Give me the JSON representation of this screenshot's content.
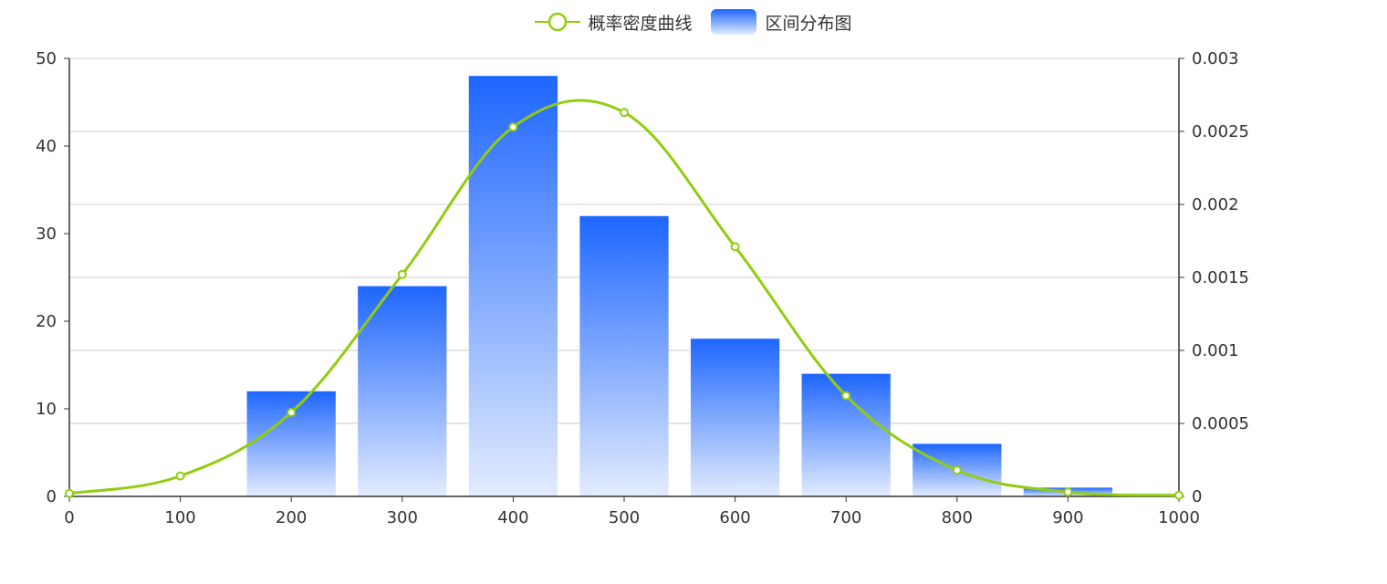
{
  "chart_data": {
    "type": "bar+line",
    "legend": [
      "概率密度曲线",
      "区间分布图"
    ],
    "legend_position": "top-center",
    "x": [
      0,
      100,
      200,
      300,
      400,
      500,
      600,
      700,
      800,
      900,
      1000
    ],
    "x_ticks": [
      "0",
      "100",
      "200",
      "300",
      "400",
      "500",
      "600",
      "700",
      "800",
      "900",
      "1000"
    ],
    "xlim": [
      0,
      1000
    ],
    "series": [
      {
        "name": "区间分布图",
        "type": "bar",
        "axis": "left",
        "values": [
          0,
          0,
          12,
          24,
          48,
          32,
          18,
          14,
          6,
          1,
          0
        ]
      },
      {
        "name": "概率密度曲线",
        "type": "line",
        "axis": "right",
        "smooth": true,
        "values": [
          2e-05,
          0.00014,
          0.000575,
          0.00152,
          0.00253,
          0.00263,
          0.00171,
          0.00069,
          0.00018,
          3e-05,
          8e-06
        ]
      }
    ],
    "y_left": {
      "ylim": [
        0,
        50
      ],
      "ticks": [
        "0",
        "10",
        "20",
        "30",
        "40",
        "50"
      ]
    },
    "y_right": {
      "ylim": [
        0,
        0.003
      ],
      "ticks": [
        "0",
        "0.0005",
        "0.001",
        "0.0015",
        "0.002",
        "0.0025",
        "0.003"
      ]
    },
    "grid": true,
    "colors": {
      "bar_top": "#1e66ff",
      "bar_bottom": "#e3ecff",
      "line": "#91cc0f",
      "axis": "#333333",
      "grid": "#cccccc"
    }
  }
}
